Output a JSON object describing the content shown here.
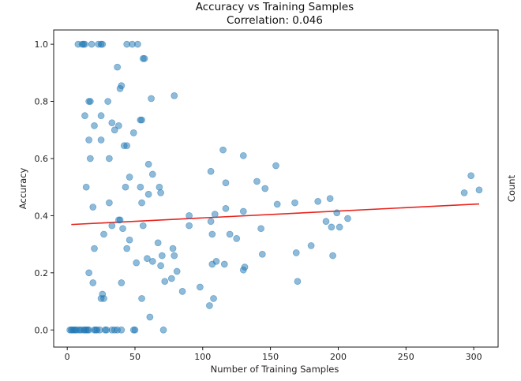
{
  "chart_data": {
    "type": "scatter",
    "title": "Accuracy vs Training Samples",
    "subtitle": "Correlation: 0.046",
    "xlabel": "Number of Training Samples",
    "ylabel": "Accuracy",
    "side_label": "Count",
    "xlim": [
      -10,
      318
    ],
    "ylim": [
      -0.06,
      1.05
    ],
    "xticks": [
      0,
      50,
      100,
      150,
      200,
      250,
      300
    ],
    "xtick_labels": [
      "0",
      "50",
      "100",
      "150",
      "200",
      "250",
      "300"
    ],
    "yticks": [
      0.0,
      0.2,
      0.4,
      0.6,
      0.8,
      1.0
    ],
    "ytick_labels": [
      "0.0",
      "0.2",
      "0.4",
      "0.6",
      "0.8",
      "1.0"
    ],
    "grid": false,
    "colors": {
      "points": "#1f77b4",
      "trend": "#e8231d"
    },
    "trend_line": {
      "x": [
        3,
        304
      ],
      "y": [
        0.369,
        0.441
      ]
    },
    "points": [
      [
        8,
        1.0
      ],
      [
        11,
        1.0
      ],
      [
        12,
        1.0
      ],
      [
        13,
        1.0
      ],
      [
        18,
        1.0
      ],
      [
        23,
        1.0
      ],
      [
        25,
        1.0
      ],
      [
        26,
        1.0
      ],
      [
        44,
        1.0
      ],
      [
        48,
        1.0
      ],
      [
        52,
        1.0
      ],
      [
        56,
        0.95
      ],
      [
        57,
        0.95
      ],
      [
        37,
        0.92
      ],
      [
        40,
        0.855
      ],
      [
        39,
        0.845
      ],
      [
        62,
        0.81
      ],
      [
        79,
        0.82
      ],
      [
        16,
        0.8
      ],
      [
        17,
        0.8
      ],
      [
        30,
        0.8
      ],
      [
        13,
        0.75
      ],
      [
        25,
        0.75
      ],
      [
        20,
        0.715
      ],
      [
        33,
        0.725
      ],
      [
        38,
        0.715
      ],
      [
        54,
        0.735
      ],
      [
        55,
        0.735
      ],
      [
        35,
        0.7
      ],
      [
        49,
        0.69
      ],
      [
        16,
        0.665
      ],
      [
        25,
        0.665
      ],
      [
        42,
        0.645
      ],
      [
        44,
        0.645
      ],
      [
        17,
        0.6
      ],
      [
        31,
        0.6
      ],
      [
        60,
        0.58
      ],
      [
        63,
        0.545
      ],
      [
        46,
        0.535
      ],
      [
        68,
        0.5
      ],
      [
        14,
        0.5
      ],
      [
        43,
        0.5
      ],
      [
        54,
        0.5
      ],
      [
        60,
        0.475
      ],
      [
        69,
        0.48
      ],
      [
        31,
        0.445
      ],
      [
        55,
        0.445
      ],
      [
        19,
        0.43
      ],
      [
        38,
        0.385
      ],
      [
        39,
        0.385
      ],
      [
        33,
        0.365
      ],
      [
        41,
        0.355
      ],
      [
        56,
        0.365
      ],
      [
        27,
        0.335
      ],
      [
        46,
        0.315
      ],
      [
        44,
        0.285
      ],
      [
        20,
        0.285
      ],
      [
        67,
        0.305
      ],
      [
        78,
        0.285
      ],
      [
        59,
        0.25
      ],
      [
        63,
        0.24
      ],
      [
        70,
        0.26
      ],
      [
        79,
        0.26
      ],
      [
        51,
        0.235
      ],
      [
        69,
        0.225
      ],
      [
        81,
        0.205
      ],
      [
        77,
        0.18
      ],
      [
        72,
        0.17
      ],
      [
        40,
        0.165
      ],
      [
        19,
        0.165
      ],
      [
        16,
        0.2
      ],
      [
        26,
        0.125
      ],
      [
        25,
        0.11
      ],
      [
        27,
        0.11
      ],
      [
        55,
        0.11
      ],
      [
        61,
        0.045
      ],
      [
        71,
        0.0
      ],
      [
        85,
        0.135
      ],
      [
        90,
        0.365
      ],
      [
        90,
        0.4
      ],
      [
        98,
        0.15
      ],
      [
        105,
        0.085
      ],
      [
        108,
        0.11
      ],
      [
        107,
        0.23
      ],
      [
        110,
        0.24
      ],
      [
        106,
        0.38
      ],
      [
        107,
        0.335
      ],
      [
        109,
        0.405
      ],
      [
        115,
        0.63
      ],
      [
        106,
        0.555
      ],
      [
        117,
        0.515
      ],
      [
        117,
        0.425
      ],
      [
        116,
        0.23
      ],
      [
        120,
        0.335
      ],
      [
        125,
        0.32
      ],
      [
        130,
        0.415
      ],
      [
        130,
        0.61
      ],
      [
        130,
        0.21
      ],
      [
        131,
        0.22
      ],
      [
        140,
        0.52
      ],
      [
        143,
        0.355
      ],
      [
        144,
        0.265
      ],
      [
        146,
        0.495
      ],
      [
        154,
        0.575
      ],
      [
        155,
        0.44
      ],
      [
        168,
        0.445
      ],
      [
        169,
        0.27
      ],
      [
        170,
        0.17
      ],
      [
        180,
        0.295
      ],
      [
        185,
        0.45
      ],
      [
        191,
        0.38
      ],
      [
        194,
        0.46
      ],
      [
        195,
        0.36
      ],
      [
        196,
        0.26
      ],
      [
        199,
        0.41
      ],
      [
        201,
        0.36
      ],
      [
        207,
        0.39
      ],
      [
        293,
        0.48
      ],
      [
        298,
        0.54
      ],
      [
        304,
        0.49
      ],
      [
        2,
        0.0
      ],
      [
        3,
        0.0
      ],
      [
        4,
        0.0
      ],
      [
        5,
        0.0
      ],
      [
        6,
        0.0
      ],
      [
        7,
        0.0
      ],
      [
        9,
        0.0
      ],
      [
        10,
        0.0
      ],
      [
        12,
        0.0
      ],
      [
        13,
        0.0
      ],
      [
        14,
        0.0
      ],
      [
        15,
        0.0
      ],
      [
        16,
        0.0
      ],
      [
        20,
        0.0
      ],
      [
        21,
        0.0
      ],
      [
        22,
        0.0
      ],
      [
        24,
        0.0
      ],
      [
        28,
        0.0
      ],
      [
        29,
        0.0
      ],
      [
        33,
        0.0
      ],
      [
        35,
        0.0
      ],
      [
        37,
        0.0
      ],
      [
        40,
        0.0
      ],
      [
        49,
        0.0
      ],
      [
        50,
        0.0
      ]
    ]
  }
}
